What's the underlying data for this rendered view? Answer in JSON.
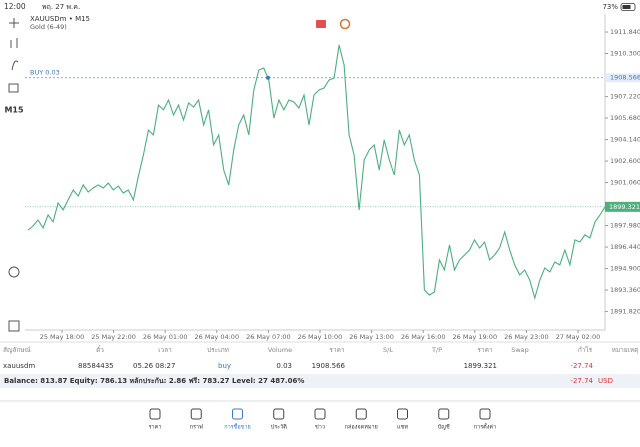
{
  "status_bar": {
    "time": "12:00",
    "date": "พฤ. 27 พ.ค.",
    "battery": "73%"
  },
  "chart": {
    "type": "line",
    "symbol": "XAUUSDm • M15",
    "description": "Gold (6-49)",
    "timeframe": "M15",
    "x_labels": [
      "25 May 18:00",
      "25 May 22:00",
      "26 May 01:00",
      "26 May 04:00",
      "26 May 07:00",
      "26 May 10:00",
      "26 May 13:00",
      "26 May 16:00",
      "26 May 19:00",
      "26 May 23:00",
      "27 May 02:00"
    ],
    "series": [
      {
        "color": "#4caf7d",
        "values": [
          1897.66,
          1897.95,
          1898.38,
          1897.81,
          1898.74,
          1898.24,
          1899.6,
          1899.1,
          1899.81,
          1900.53,
          1900.1,
          1900.89,
          1900.38,
          1900.67,
          1900.89,
          1900.67,
          1901.03,
          1900.53,
          1900.81,
          1900.31,
          1900.53,
          1899.81,
          1901.53,
          1903.03,
          1904.82,
          1904.47,
          1906.61,
          1906.26,
          1906.97,
          1905.9,
          1906.61,
          1905.54,
          1906.76,
          1906.47,
          1906.97,
          1905.18,
          1906.26,
          1903.75,
          1904.47,
          1901.96,
          1900.89,
          1903.39,
          1905.18,
          1905.9,
          1904.47,
          1907.69,
          1909.12,
          1909.26,
          1908.4,
          1905.68,
          1906.97,
          1906.26,
          1906.97,
          1906.83,
          1906.4,
          1907.33,
          1905.18,
          1907.33,
          1907.69,
          1907.83,
          1908.4,
          1908.55,
          1910.91,
          1909.48,
          1904.47,
          1903.03,
          1899.1,
          1902.68,
          1903.39,
          1903.75,
          1901.96,
          1904.11,
          1902.68,
          1901.6,
          1904.82,
          1903.75,
          1904.47,
          1902.68,
          1901.6,
          1893.37,
          1893.01,
          1893.22,
          1895.52,
          1894.8,
          1896.59,
          1894.8,
          1895.52,
          1895.87,
          1896.23,
          1896.95,
          1896.37,
          1896.8,
          1895.52,
          1895.87,
          1896.37,
          1897.52,
          1896.23,
          1895.16,
          1894.44,
          1894.8,
          1894.08,
          1892.79,
          1894.08,
          1894.94,
          1894.66,
          1895.37,
          1895.16,
          1896.23,
          1895.16,
          1896.95,
          1896.8,
          1897.31,
          1897.09,
          1898.24,
          1898.74,
          1899.32
        ]
      }
    ],
    "ylim": [
      1890.5,
      1913.06
    ],
    "yticks": [
      {
        "value": 1911.84,
        "label": "1911.840"
      },
      {
        "value": 1910.3,
        "label": "1910.300"
      },
      {
        "value": 1907.22,
        "label": "1907.220"
      },
      {
        "value": 1905.68,
        "label": "1905.680"
      },
      {
        "value": 1904.14,
        "label": "1904.140"
      },
      {
        "value": 1902.6,
        "label": "1902.600"
      },
      {
        "value": 1901.06,
        "label": "1901.060"
      },
      {
        "value": 1897.98,
        "label": "1897.980"
      },
      {
        "value": 1896.44,
        "label": "1896.440"
      },
      {
        "value": 1894.9,
        "label": "1894.900"
      },
      {
        "value": 1893.36,
        "label": "1893.360"
      },
      {
        "value": 1891.82,
        "label": "1891.820"
      }
    ],
    "buy_line": {
      "label": "BUY 0.03",
      "value": 1908.566
    },
    "current_price": 1899.321
  },
  "table": {
    "headers": [
      "สัญลักษณ์",
      "ตั๋ว",
      "เวลา",
      "ประเภท",
      "Volume",
      "ราคา",
      "S/L",
      "T/P",
      "ราคา",
      "Swap",
      "กำไร",
      "หมายเหตุ"
    ],
    "row": {
      "symbol": "xauusdm",
      "ticket": "88584435",
      "time": "05.26 08:27",
      "type": "buy",
      "volume": 0.03,
      "open_price": 1908.566,
      "price": 1899.321,
      "profit": -27.74
    },
    "balance": "Balance: 813.87 Equity: 786.13 หลักประกัน: 2.86 ฟรี: 783.27 Level: 27 487.06%",
    "total_profit": -27.74,
    "currency": "USD"
  },
  "nav": [
    "ราคา",
    "กราฟ",
    "การซื้อขาย",
    "ประวัติ",
    "ข่าว",
    "กล่องจดหมาย",
    "แชท",
    "บัญชี",
    "การตั้งค่า"
  ]
}
